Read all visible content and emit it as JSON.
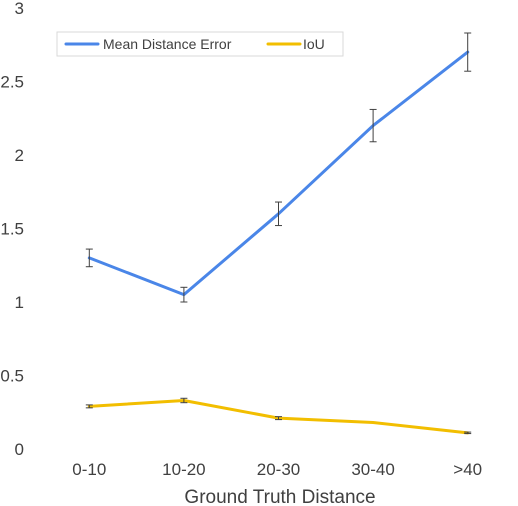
{
  "chart_data": {
    "type": "line",
    "categories": [
      "0-10",
      "10-20",
      "20-30",
      "30-40",
      ">40"
    ],
    "series": [
      {
        "name": "Mean Distance Error",
        "color": "#4A86E8",
        "values": [
          1.3,
          1.05,
          1.6,
          2.2,
          2.7
        ],
        "error": [
          0.06,
          0.05,
          0.08,
          0.11,
          0.13
        ]
      },
      {
        "name": "IoU",
        "color": "#F2BE00",
        "values": [
          0.29,
          0.33,
          0.21,
          0.18,
          0.11
        ],
        "error": [
          0.01,
          0.015,
          0.01,
          0.0,
          0.005
        ]
      }
    ],
    "xlabel": "Ground Truth Distance",
    "ylabel": "",
    "ylim": [
      0,
      3
    ],
    "yticks": [
      "0",
      "0.5",
      "1",
      "1.5",
      "2",
      "2.5",
      "3"
    ],
    "grid": false,
    "legend": "top-left"
  }
}
